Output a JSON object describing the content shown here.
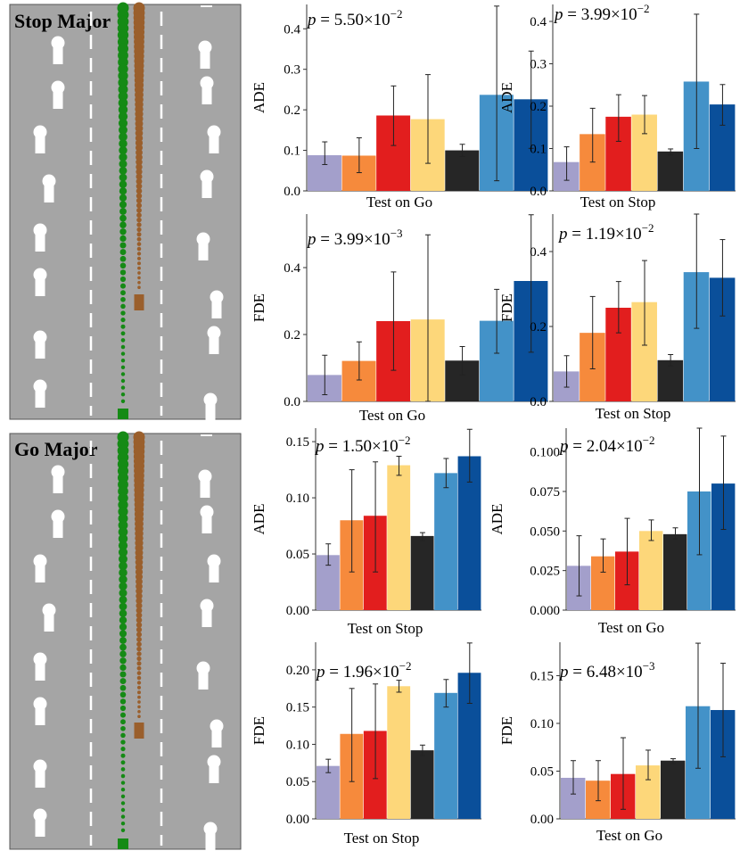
{
  "scenes": [
    {
      "title": "Stop Major"
    },
    {
      "title": "Go Major"
    }
  ],
  "colors": {
    "road": "#a5a5a5",
    "road_border": "#555555",
    "lane_mark": "#ffffff",
    "pedestrian": "#ffffff",
    "green_traj": "#158a15",
    "brown_traj": "#9a5f2c",
    "error_bar": "#222222",
    "bars": [
      "#a39fcb",
      "#f68a3c",
      "#e21e1e",
      "#fdd77a",
      "#262626",
      "#4392c8",
      "#0a4f9a"
    ]
  },
  "chart_data": [
    {
      "type": "bar",
      "panel": "stop-ade-go",
      "p_label": "p = 5.50×10",
      "p_exp": "−2",
      "xlabel": "Test on Go",
      "ylabel": "ADE",
      "ylim": [
        0,
        0.46
      ],
      "yticks": [
        0.0,
        0.1,
        0.2,
        0.3,
        0.4
      ],
      "tick_labels": [
        "0.0",
        "0.1",
        "0.2",
        "0.3",
        "0.4"
      ],
      "values": [
        0.088,
        0.087,
        0.186,
        0.177,
        0.1,
        0.237,
        0.226
      ],
      "errors": [
        [
          0.065,
          0.121
        ],
        [
          0.045,
          0.131
        ],
        [
          0.112,
          0.259
        ],
        [
          0.068,
          0.287
        ],
        [
          0.085,
          0.115
        ],
        [
          0.025,
          0.456
        ],
        [
          0.105,
          0.345
        ]
      ]
    },
    {
      "type": "bar",
      "panel": "stop-ade-stop",
      "p_label": "p = 3.99×10",
      "p_exp": "−2",
      "xlabel": "Test on Stop",
      "ylabel": "ADE",
      "ylim": [
        0,
        0.44
      ],
      "yticks": [
        0.0,
        0.1,
        0.2,
        0.3,
        0.4
      ],
      "tick_labels": [
        "0.0",
        "0.1",
        "0.2",
        "0.3",
        "0.4"
      ],
      "values": [
        0.068,
        0.134,
        0.175,
        0.18,
        0.093,
        0.258,
        0.204
      ],
      "errors": [
        [
          0.025,
          0.104
        ],
        [
          0.068,
          0.195
        ],
        [
          0.117,
          0.227
        ],
        [
          0.135,
          0.225
        ],
        [
          0.085,
          0.099
        ],
        [
          0.1,
          0.417
        ],
        [
          0.155,
          0.251
        ]
      ]
    },
    {
      "type": "bar",
      "panel": "stop-fde-go",
      "p_label": "p = 3.99×10",
      "p_exp": "−3",
      "xlabel": "Test on Go",
      "ylabel": "FDE",
      "ylim": [
        0,
        0.56
      ],
      "yticks": [
        0.0,
        0.2,
        0.4
      ],
      "tick_labels": [
        "0.0",
        "0.2",
        "0.4"
      ],
      "values": [
        0.079,
        0.121,
        0.24,
        0.245,
        0.122,
        0.241,
        0.36
      ],
      "errors": [
        [
          0.02,
          0.138
        ],
        [
          0.064,
          0.178
        ],
        [
          0.093,
          0.387
        ],
        [
          0.0,
          0.498
        ],
        [
          0.079,
          0.164
        ],
        [
          0.144,
          0.335
        ],
        [
          0.147,
          0.558
        ]
      ]
    },
    {
      "type": "bar",
      "panel": "stop-fde-stop",
      "p_label": "p = 1.19×10",
      "p_exp": "−2",
      "xlabel": "Test on Stop",
      "ylabel": "FDE",
      "ylim": [
        0,
        0.5
      ],
      "yticks": [
        0.0,
        0.2,
        0.4
      ],
      "tick_labels": [
        "0.0",
        "0.2",
        "0.4"
      ],
      "values": [
        0.08,
        0.183,
        0.25,
        0.265,
        0.11,
        0.345,
        0.33
      ],
      "errors": [
        [
          0.038,
          0.122
        ],
        [
          0.087,
          0.28
        ],
        [
          0.183,
          0.32
        ],
        [
          0.15,
          0.376
        ],
        [
          0.095,
          0.125
        ],
        [
          0.195,
          0.5
        ],
        [
          0.228,
          0.432
        ]
      ]
    },
    {
      "type": "bar",
      "panel": "go-ade-stop",
      "p_label": "p = 1.50×10",
      "p_exp": "−2",
      "xlabel": "Test on Stop",
      "ylabel": "ADE",
      "ylim": [
        0,
        0.162
      ],
      "yticks": [
        0.0,
        0.05,
        0.1,
        0.15
      ],
      "tick_labels": [
        "0.00",
        "0.05",
        "0.10",
        "0.15"
      ],
      "values": [
        0.049,
        0.08,
        0.084,
        0.129,
        0.066,
        0.122,
        0.137
      ],
      "errors": [
        [
          0.04,
          0.059
        ],
        [
          0.034,
          0.125
        ],
        [
          0.034,
          0.132
        ],
        [
          0.12,
          0.137
        ],
        [
          0.062,
          0.069
        ],
        [
          0.109,
          0.135
        ],
        [
          0.114,
          0.161
        ]
      ]
    },
    {
      "type": "bar",
      "panel": "go-ade-go",
      "p_label": "p = 2.04×10",
      "p_exp": "−2",
      "xlabel": "Test on Go",
      "ylabel": "ADE",
      "ylim": [
        0,
        0.115
      ],
      "yticks": [
        0.0,
        0.025,
        0.05,
        0.075,
        0.1
      ],
      "tick_labels": [
        "0.000",
        "0.025",
        "0.050",
        "0.075",
        "0.100"
      ],
      "values": [
        0.028,
        0.034,
        0.037,
        0.05,
        0.048,
        0.075,
        0.08
      ],
      "errors": [
        [
          0.009,
          0.047
        ],
        [
          0.024,
          0.045
        ],
        [
          0.016,
          0.058
        ],
        [
          0.044,
          0.057
        ],
        [
          0.045,
          0.052
        ],
        [
          0.035,
          0.115
        ],
        [
          0.051,
          0.11
        ]
      ]
    },
    {
      "type": "bar",
      "panel": "go-fde-stop",
      "p_label": "p = 1.96×10",
      "p_exp": "−2",
      "xlabel": "Test on Stop",
      "ylabel": "FDE",
      "ylim": [
        0,
        0.237
      ],
      "yticks": [
        0.0,
        0.05,
        0.1,
        0.15,
        0.2
      ],
      "tick_labels": [
        "0.00",
        "0.05",
        "0.10",
        "0.15",
        "0.20"
      ],
      "values": [
        0.071,
        0.114,
        0.118,
        0.178,
        0.092,
        0.169,
        0.196
      ],
      "errors": [
        [
          0.062,
          0.08
        ],
        [
          0.05,
          0.175
        ],
        [
          0.054,
          0.181
        ],
        [
          0.17,
          0.186
        ],
        [
          0.085,
          0.099
        ],
        [
          0.15,
          0.187
        ],
        [
          0.155,
          0.236
        ]
      ]
    },
    {
      "type": "bar",
      "panel": "go-fde-go",
      "p_label": "p = 6.48×10",
      "p_exp": "−3",
      "xlabel": "Test on Go",
      "ylabel": "FDE",
      "ylim": [
        0,
        0.185
      ],
      "yticks": [
        0.0,
        0.05,
        0.1,
        0.15
      ],
      "tick_labels": [
        "0.00",
        "0.05",
        "0.10",
        "0.15"
      ],
      "values": [
        0.043,
        0.04,
        0.047,
        0.056,
        0.061,
        0.118,
        0.114
      ],
      "errors": [
        [
          0.026,
          0.061
        ],
        [
          0.019,
          0.061
        ],
        [
          0.01,
          0.085
        ],
        [
          0.041,
          0.072
        ],
        [
          0.058,
          0.063
        ],
        [
          0.053,
          0.184
        ],
        [
          0.065,
          0.163
        ]
      ]
    }
  ]
}
